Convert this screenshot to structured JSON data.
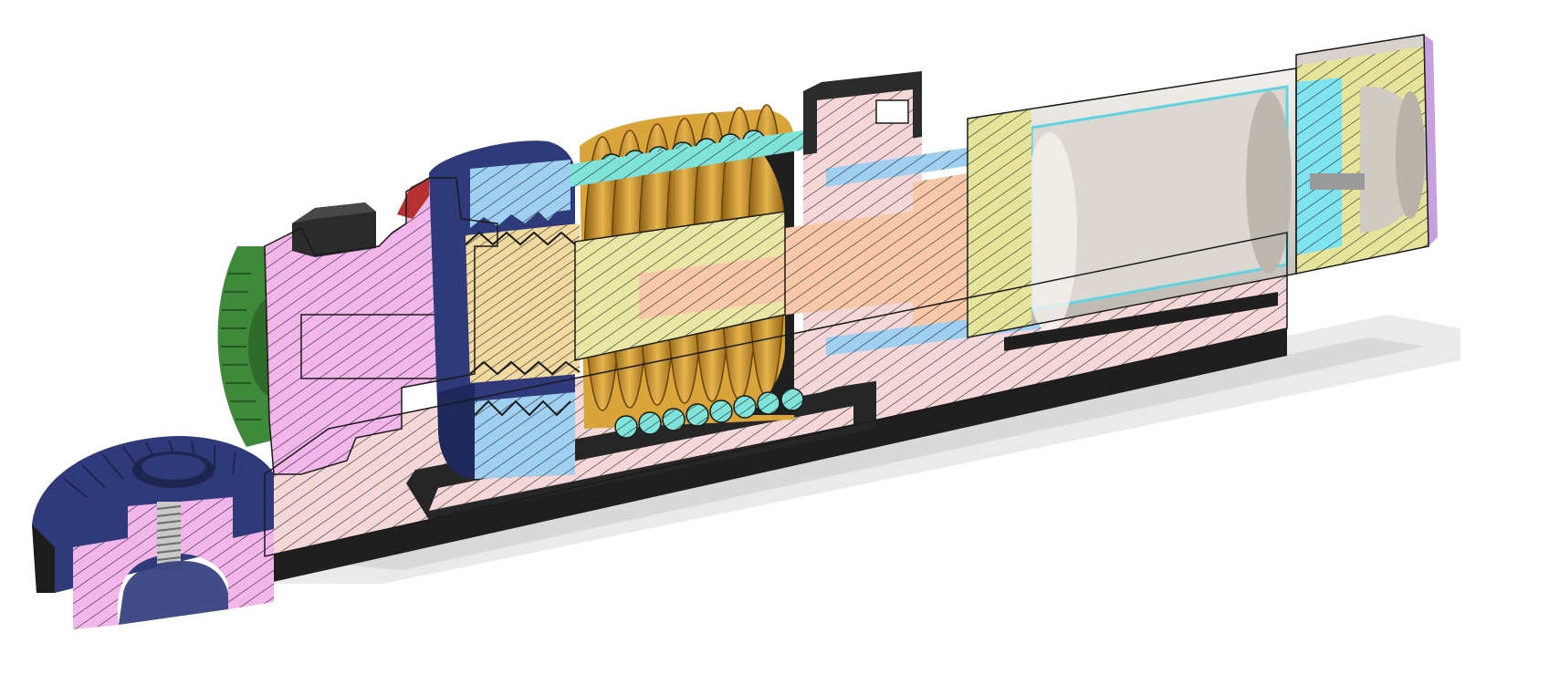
{
  "figure": {
    "kind": "cad-section-view",
    "background": "#ffffff",
    "parts": [
      {
        "id": "bevel-pinion",
        "icon": "bevel-gear-icon",
        "color": "#2e3a7a"
      },
      {
        "id": "bevel-gear-green",
        "icon": "bevel-gear-icon",
        "color": "#3f8a3a"
      },
      {
        "id": "arm-pink",
        "icon": "bracket-icon",
        "color": "#f2b6ea"
      },
      {
        "id": "base-plate",
        "icon": "plate-icon",
        "color": "#f6d7d7"
      },
      {
        "id": "spring-coil",
        "icon": "spring-icon",
        "color": "#d9a43a"
      },
      {
        "id": "spring-section",
        "icon": "spring-section-icon",
        "color": "#7fe3da"
      },
      {
        "id": "drive-nut",
        "icon": "nut-icon",
        "color": "#2e3a7a"
      },
      {
        "id": "thread-insert",
        "icon": "thread-icon",
        "color": "#9fd0f2"
      },
      {
        "id": "lead-screw",
        "icon": "screw-icon",
        "color": "#f2d9a0"
      },
      {
        "id": "shaft-yellow",
        "icon": "shaft-icon",
        "color": "#e9e7a3"
      },
      {
        "id": "piston",
        "icon": "piston-icon",
        "color": "#f8c8a8"
      },
      {
        "id": "cylinder-can",
        "icon": "cylinder-icon",
        "color": "#cfcac2"
      },
      {
        "id": "end-cap",
        "icon": "cap-icon",
        "color": "#e6e49a"
      },
      {
        "id": "seal-cyan",
        "icon": "seal-icon",
        "color": "#7fe3f0"
      },
      {
        "id": "lock-block",
        "icon": "block-icon",
        "color": "#2b2b2b"
      }
    ]
  }
}
